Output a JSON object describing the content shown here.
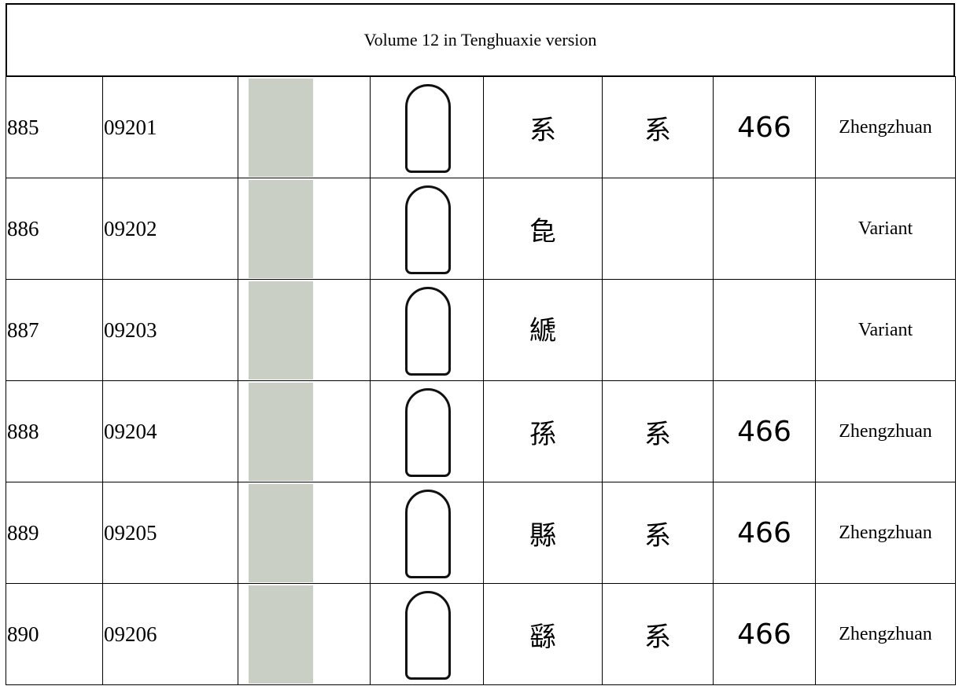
{
  "header": {
    "title": "Volume 12 in Tenghuaxie version"
  },
  "table": {
    "rows": [
      [
        "885",
        "09201",
        "系",
        "系",
        "466",
        "Zhengzhuan"
      ],
      [
        "886",
        "09202",
        "㲋",
        null,
        null,
        "Variant"
      ],
      [
        "887",
        "09203",
        "𦃇",
        null,
        null,
        "Variant"
      ],
      [
        "888",
        "09204",
        "孫",
        "系",
        "466",
        "Zhengzhuan"
      ],
      [
        "889",
        "09205",
        "縣",
        "系",
        "466",
        "Zhengzhuan"
      ],
      [
        "890",
        "09206",
        "繇",
        "系",
        "466",
        "Zhengzhuan"
      ]
    ]
  }
}
